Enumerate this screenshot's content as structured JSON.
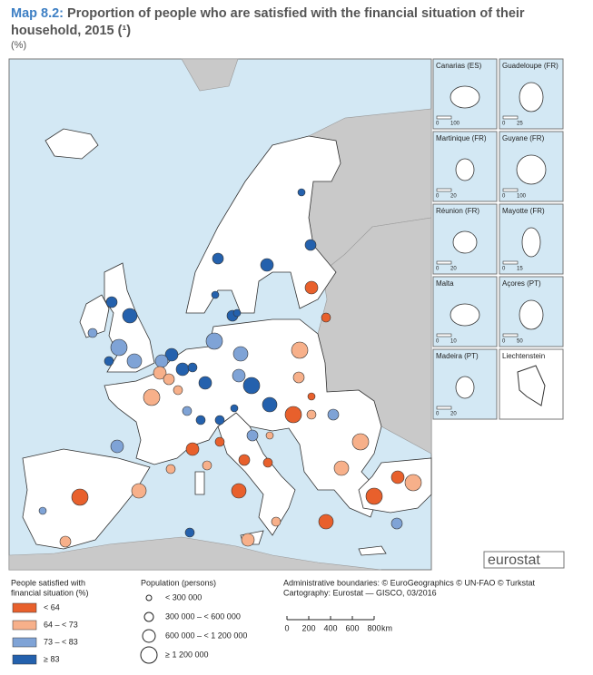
{
  "header": {
    "map_number": "Map 8.2:",
    "title": "Proportion of people who are satisfied with the financial situation of their household, 2015 (¹)",
    "unit": "(%)"
  },
  "insets": [
    {
      "label": "Canarias (ES)",
      "scale": [
        "0",
        "100"
      ]
    },
    {
      "label": "Guadeloupe (FR)",
      "scale": [
        "0",
        "25"
      ]
    },
    {
      "label": "Martinique (FR)",
      "scale": [
        "0",
        "20"
      ]
    },
    {
      "label": "Guyane (FR)",
      "scale": [
        "0",
        "100"
      ]
    },
    {
      "label": "Réunion (FR)",
      "scale": [
        "0",
        "20"
      ]
    },
    {
      "label": "Mayotte (FR)",
      "scale": [
        "0",
        "15"
      ]
    },
    {
      "label": "Malta",
      "scale": [
        "0",
        "10"
      ]
    },
    {
      "label": "Açores (PT)",
      "scale": [
        "0",
        "50"
      ]
    },
    {
      "label": "Madeira (PT)",
      "scale": [
        "0",
        "20"
      ]
    },
    {
      "label": "Liechtenstein",
      "scale": []
    }
  ],
  "legend": {
    "title": [
      "People satisfied with",
      "financial situation (%)"
    ],
    "classes": [
      {
        "label": "< 64",
        "color": "#e8602c"
      },
      {
        "label": "64 – < 73",
        "color": "#f7b08a"
      },
      {
        "label": "73 – < 83",
        "color": "#7fa3d6"
      },
      {
        "label": "≥ 83",
        "color": "#2461ad"
      }
    ]
  },
  "population": {
    "title": "Population (persons)",
    "classes": [
      "< 300 000",
      "300 000 – < 600 000",
      "600 000 – < 1 200 000",
      "≥ 1 200 000"
    ]
  },
  "credits": [
    "Administrative boundaries: © EuroGeographics © UN-FAO © Turkstat",
    "Cartography: Eurostat — GISCO, 03/2016"
  ],
  "scale_bar": {
    "labels": [
      "0",
      "200",
      "400",
      "600",
      "800"
    ],
    "unit": "km"
  },
  "logo": "eurostat"
}
